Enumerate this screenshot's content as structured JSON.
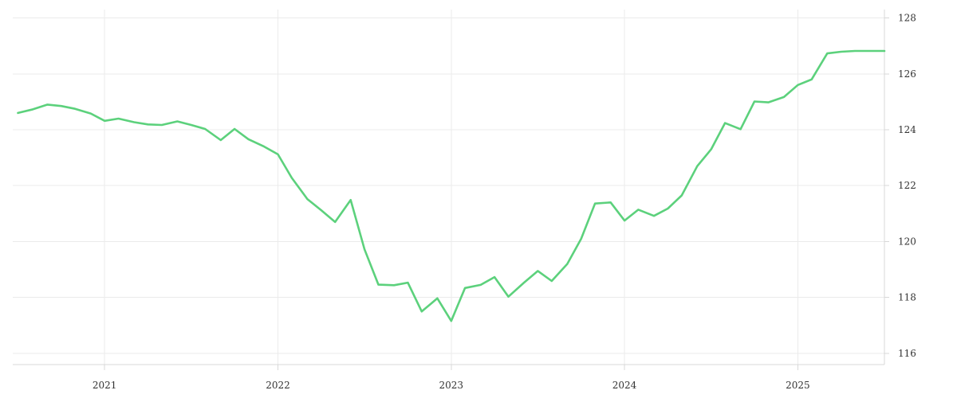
{
  "chart_data": {
    "type": "line",
    "title": "",
    "xlabel": "",
    "ylabel": "",
    "x_ticks": [
      {
        "label": "2021",
        "value": 2021.0
      },
      {
        "label": "2022",
        "value": 2022.0
      },
      {
        "label": "2023",
        "value": 2023.0
      },
      {
        "label": "2024",
        "value": 2024.0
      },
      {
        "label": "2025",
        "value": 2025.0
      }
    ],
    "y_ticks": [
      116,
      118,
      120,
      122,
      124,
      126,
      128
    ],
    "xlim": [
      2020.47,
      2025.5
    ],
    "ylim": [
      115.6,
      128.3
    ],
    "y_axis_side": "right",
    "grid": true,
    "colors": {
      "line": "#5cd17c"
    },
    "series": [
      {
        "x": [
          2020.5,
          2020.58,
          2020.67,
          2020.75,
          2020.83,
          2020.92,
          2021.0,
          2021.08,
          2021.17,
          2021.25,
          2021.33,
          2021.42,
          2021.5,
          2021.58,
          2021.67,
          2021.75,
          2021.83,
          2021.92,
          2022.0,
          2022.08,
          2022.17,
          2022.25,
          2022.33,
          2022.42,
          2022.5,
          2022.58,
          2022.67,
          2022.75,
          2022.83,
          2022.92,
          2023.0,
          2023.08,
          2023.17,
          2023.25,
          2023.33,
          2023.42,
          2023.5,
          2023.58,
          2023.67,
          2023.75,
          2023.83,
          2023.92,
          2024.0,
          2024.08,
          2024.17,
          2024.25,
          2024.33,
          2024.42,
          2024.5,
          2024.58,
          2024.67,
          2024.75,
          2024.83,
          2024.92,
          2025.0,
          2025.08,
          2025.17,
          2025.25,
          2025.33,
          2025.42,
          2025.5
        ],
        "y": [
          124.6,
          124.72,
          124.9,
          124.85,
          124.75,
          124.58,
          124.32,
          124.4,
          124.27,
          124.19,
          124.17,
          124.3,
          124.17,
          124.03,
          123.63,
          124.03,
          123.66,
          123.4,
          123.12,
          122.28,
          121.52,
          121.12,
          120.7,
          121.49,
          119.72,
          118.46,
          118.44,
          118.53,
          117.5,
          117.97,
          117.16,
          118.34,
          118.45,
          118.73,
          118.03,
          118.53,
          118.95,
          118.59,
          119.2,
          120.1,
          121.36,
          121.4,
          120.75,
          121.14,
          120.92,
          121.18,
          121.65,
          122.7,
          123.3,
          124.24,
          124.02,
          125.01,
          124.98,
          125.17,
          125.6,
          125.8,
          126.73,
          126.79,
          126.82,
          126.82,
          126.82
        ]
      }
    ]
  }
}
